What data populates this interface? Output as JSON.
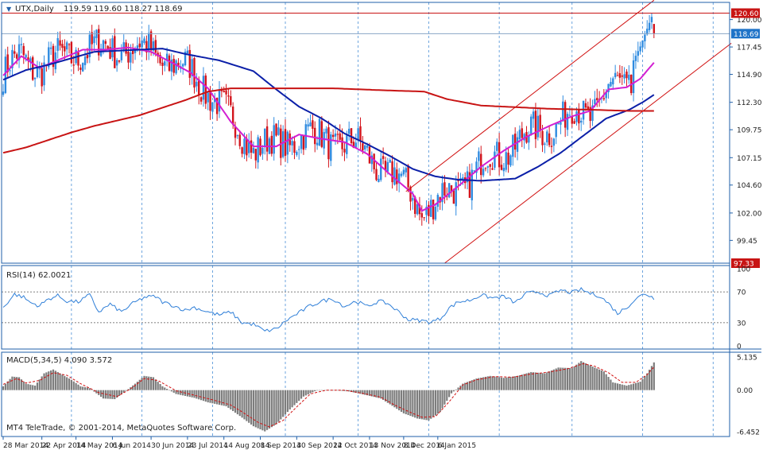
{
  "window": {
    "title": "UTX,Daily",
    "ohlc": "119.59 119.60 118.27 118.69",
    "copyright": "MT4 TeleTrade, © 2001-2014, MetaQuotes Software Corp."
  },
  "colors": {
    "background": "#ffffff",
    "frame": "#1f5fa8",
    "axis_text": "#222222",
    "grid": "#4a8fd6",
    "bull_candle": "#2f8be0",
    "bear_candle": "#d3141c",
    "ma_fast": "#d21fd2",
    "ma_mid": "#0b1fa8",
    "ma_slow": "#c81414",
    "channel": "#d01010",
    "hline": "#c81414",
    "rsi_line": "#2f7fd8",
    "macd_hist": "#7d7d7d",
    "macd_signal": "#d01010",
    "price_tag_red": "#c81414",
    "price_tag_blue": "#1e73c8"
  },
  "chart_data": [
    {
      "type": "candlestick",
      "symbol": "UTX",
      "timeframe": "Daily",
      "ylim": [
        97.33,
        121.6
      ],
      "y_ticks": [
        120.0,
        117.45,
        114.9,
        112.3,
        109.75,
        107.15,
        104.6,
        102.0,
        99.45
      ],
      "x_ticks": [
        "28 Mar 2014",
        "22 Apr 2014",
        "14 May 2014",
        "6 Jun 2014",
        "30 Jun 2014",
        "23 Jul 2014",
        "14 Aug 2014",
        "8 Sep 2014",
        "30 Sep 2014",
        "22 Oct 2014",
        "13 Nov 2014",
        "8 Dec 2014",
        "6 Jan 2015"
      ],
      "last_bar": {
        "open": 119.59,
        "high": 119.6,
        "low": 118.27,
        "close": 118.69
      },
      "horizontal_lines": [
        {
          "price": 120.6,
          "label": "120.60"
        },
        {
          "price": 97.33,
          "label": "97.33"
        }
      ],
      "current_price": {
        "price": 118.69,
        "label": "118.69"
      },
      "moving_averages": [
        {
          "key": "ma_fast",
          "anchors": [
            [
              0,
              114.8
            ],
            [
              8,
              116.6
            ],
            [
              16,
              115.5
            ],
            [
              25,
              116.3
            ],
            [
              35,
              117.2
            ],
            [
              45,
              117.2
            ],
            [
              55,
              117.4
            ],
            [
              65,
              117.0
            ],
            [
              75,
              115.9
            ],
            [
              82,
              115.1
            ],
            [
              90,
              113.6
            ],
            [
              100,
              110.5
            ],
            [
              110,
              108.2
            ],
            [
              120,
              108.2
            ],
            [
              130,
              109.3
            ],
            [
              140,
              108.9
            ],
            [
              150,
              108.6
            ],
            [
              160,
              107.5
            ],
            [
              170,
              105.6
            ],
            [
              180,
              103.8
            ],
            [
              184,
              102.2
            ],
            [
              190,
              102.8
            ],
            [
              200,
              104.5
            ],
            [
              210,
              106.3
            ],
            [
              220,
              107.8
            ],
            [
              230,
              109.1
            ],
            [
              240,
              110.1
            ],
            [
              250,
              111.0
            ],
            [
              258,
              111.5
            ],
            [
              266,
              113.5
            ],
            [
              274,
              113.7
            ],
            [
              280,
              114.5
            ],
            [
              286,
              116.0
            ]
          ]
        },
        {
          "key": "ma_mid",
          "anchors": [
            [
              0,
              114.4
            ],
            [
              10,
              115.3
            ],
            [
              20,
              115.8
            ],
            [
              30,
              116.4
            ],
            [
              40,
              117.0
            ],
            [
              60,
              117.2
            ],
            [
              70,
              117.3
            ],
            [
              80,
              116.8
            ],
            [
              95,
              116.2
            ],
            [
              110,
              115.2
            ],
            [
              120,
              113.5
            ],
            [
              130,
              111.9
            ],
            [
              140,
              110.8
            ],
            [
              150,
              109.4
            ],
            [
              160,
              108.4
            ],
            [
              170,
              107.3
            ],
            [
              180,
              106.1
            ],
            [
              190,
              105.4
            ],
            [
              200,
              105.1
            ],
            [
              210,
              105.0
            ],
            [
              225,
              105.2
            ],
            [
              235,
              106.3
            ],
            [
              245,
              107.6
            ],
            [
              255,
              109.2
            ],
            [
              265,
              110.8
            ],
            [
              275,
              111.6
            ],
            [
              281,
              112.3
            ],
            [
              286,
              113.0
            ]
          ]
        },
        {
          "key": "ma_slow",
          "anchors": [
            [
              0,
              107.6
            ],
            [
              10,
              108.1
            ],
            [
              20,
              108.8
            ],
            [
              30,
              109.5
            ],
            [
              40,
              110.1
            ],
            [
              50,
              110.6
            ],
            [
              60,
              111.1
            ],
            [
              70,
              111.8
            ],
            [
              80,
              112.5
            ],
            [
              90,
              113.3
            ],
            [
              100,
              113.6
            ],
            [
              120,
              113.6
            ],
            [
              145,
              113.6
            ],
            [
              170,
              113.4
            ],
            [
              185,
              113.3
            ],
            [
              195,
              112.6
            ],
            [
              210,
              112.0
            ],
            [
              240,
              111.7
            ],
            [
              260,
              111.6
            ],
            [
              275,
              111.5
            ],
            [
              286,
              111.5
            ]
          ]
        }
      ],
      "channel": {
        "lower": [
          [
            194,
            97.33
          ],
          [
            320,
            117.8
          ]
        ],
        "upper": [
          [
            177,
            104.0
          ],
          [
            286,
            121.8
          ]
        ]
      }
    },
    {
      "type": "line",
      "name": "RSI(14)",
      "label": "RSI(14) 62.0021",
      "ylim": [
        0,
        100
      ],
      "y_ticks": [
        100,
        70,
        30,
        0
      ],
      "levels": [
        70,
        30
      ],
      "anchors": [
        [
          0,
          50
        ],
        [
          5,
          67
        ],
        [
          9,
          63
        ],
        [
          12,
          56
        ],
        [
          16,
          52
        ],
        [
          20,
          61
        ],
        [
          24,
          65
        ],
        [
          28,
          58
        ],
        [
          33,
          57
        ],
        [
          38,
          66
        ],
        [
          42,
          44
        ],
        [
          47,
          54
        ],
        [
          52,
          44
        ],
        [
          57,
          55
        ],
        [
          62,
          63
        ],
        [
          67,
          64
        ],
        [
          70,
          57
        ],
        [
          75,
          52
        ],
        [
          80,
          46
        ],
        [
          84,
          50
        ],
        [
          90,
          44
        ],
        [
          95,
          40
        ],
        [
          100,
          44
        ],
        [
          105,
          30
        ],
        [
          110,
          28
        ],
        [
          115,
          19
        ],
        [
          120,
          22
        ],
        [
          125,
          34
        ],
        [
          130,
          43
        ],
        [
          135,
          52
        ],
        [
          140,
          58
        ],
        [
          145,
          61
        ],
        [
          150,
          51
        ],
        [
          155,
          58
        ],
        [
          160,
          51
        ],
        [
          165,
          58
        ],
        [
          169,
          55
        ],
        [
          173,
          46
        ],
        [
          178,
          34
        ],
        [
          183,
          33
        ],
        [
          188,
          31
        ],
        [
          192,
          35
        ],
        [
          196,
          49
        ],
        [
          200,
          57
        ],
        [
          205,
          59
        ],
        [
          210,
          66
        ],
        [
          215,
          62
        ],
        [
          220,
          64
        ],
        [
          225,
          56
        ],
        [
          230,
          68
        ],
        [
          235,
          70
        ],
        [
          240,
          65
        ],
        [
          245,
          72
        ],
        [
          250,
          69
        ],
        [
          254,
          73
        ],
        [
          258,
          68
        ],
        [
          262,
          65
        ],
        [
          266,
          55
        ],
        [
          270,
          42
        ],
        [
          274,
          50
        ],
        [
          278,
          61
        ],
        [
          282,
          68
        ],
        [
          286,
          62
        ]
      ]
    },
    {
      "type": "bar+line",
      "name": "MACD(5,34,5)",
      "label": "MACD(5,34,5) 4.090 3.572",
      "ylim": [
        -6.452,
        5.135
      ],
      "y_ticks": [
        5.135,
        0.0,
        -6.452
      ],
      "histogram_anchors": [
        [
          0,
          0.6
        ],
        [
          4,
          2.1
        ],
        [
          7,
          2.0
        ],
        [
          10,
          1.0
        ],
        [
          14,
          0.7
        ],
        [
          18,
          2.6
        ],
        [
          22,
          3.2
        ],
        [
          26,
          2.4
        ],
        [
          30,
          1.6
        ],
        [
          34,
          0.6
        ],
        [
          38,
          0.3
        ],
        [
          44,
          -1.3
        ],
        [
          49,
          -1.4
        ],
        [
          53,
          -0.4
        ],
        [
          58,
          1.0
        ],
        [
          62,
          2.2
        ],
        [
          66,
          2.0
        ],
        [
          70,
          0.6
        ],
        [
          76,
          -0.6
        ],
        [
          84,
          -1.2
        ],
        [
          90,
          -1.9
        ],
        [
          98,
          -2.5
        ],
        [
          104,
          -4.0
        ],
        [
          110,
          -5.6
        ],
        [
          115,
          -6.4
        ],
        [
          120,
          -5.3
        ],
        [
          126,
          -3.0
        ],
        [
          132,
          -1.0
        ],
        [
          138,
          0.0
        ],
        [
          145,
          0.0
        ],
        [
          152,
          -0.2
        ],
        [
          160,
          -0.8
        ],
        [
          166,
          -1.3
        ],
        [
          170,
          -2.2
        ],
        [
          176,
          -3.6
        ],
        [
          182,
          -4.4
        ],
        [
          187,
          -4.7
        ],
        [
          192,
          -3.4
        ],
        [
          197,
          -0.5
        ],
        [
          202,
          1.0
        ],
        [
          208,
          1.8
        ],
        [
          214,
          2.2
        ],
        [
          220,
          1.9
        ],
        [
          226,
          2.2
        ],
        [
          232,
          2.8
        ],
        [
          238,
          2.6
        ],
        [
          244,
          3.5
        ],
        [
          250,
          3.4
        ],
        [
          254,
          4.5
        ],
        [
          258,
          3.8
        ],
        [
          264,
          2.9
        ],
        [
          268,
          1.2
        ],
        [
          274,
          0.7
        ],
        [
          280,
          1.3
        ],
        [
          283,
          2.6
        ],
        [
          286,
          4.3
        ]
      ],
      "signal_anchors": [
        [
          0,
          0.9
        ],
        [
          6,
          1.8
        ],
        [
          10,
          1.1
        ],
        [
          16,
          1.5
        ],
        [
          22,
          2.7
        ],
        [
          28,
          2.3
        ],
        [
          34,
          1.0
        ],
        [
          42,
          -0.4
        ],
        [
          50,
          -1.0
        ],
        [
          56,
          0.2
        ],
        [
          62,
          1.8
        ],
        [
          68,
          1.5
        ],
        [
          76,
          -0.1
        ],
        [
          84,
          -0.8
        ],
        [
          92,
          -1.5
        ],
        [
          100,
          -2.3
        ],
        [
          106,
          -3.6
        ],
        [
          112,
          -5.0
        ],
        [
          117,
          -5.7
        ],
        [
          123,
          -4.7
        ],
        [
          129,
          -2.6
        ],
        [
          135,
          -0.6
        ],
        [
          142,
          0.0
        ],
        [
          150,
          0.0
        ],
        [
          158,
          -0.5
        ],
        [
          166,
          -1.1
        ],
        [
          172,
          -2.3
        ],
        [
          178,
          -3.3
        ],
        [
          184,
          -4.2
        ],
        [
          190,
          -4.1
        ],
        [
          196,
          -1.8
        ],
        [
          202,
          0.8
        ],
        [
          208,
          1.6
        ],
        [
          216,
          2.1
        ],
        [
          224,
          2.0
        ],
        [
          232,
          2.5
        ],
        [
          240,
          2.8
        ],
        [
          248,
          3.3
        ],
        [
          255,
          4.1
        ],
        [
          260,
          3.7
        ],
        [
          266,
          2.7
        ],
        [
          272,
          1.2
        ],
        [
          278,
          1.2
        ],
        [
          283,
          2.4
        ],
        [
          286,
          3.6
        ]
      ]
    }
  ]
}
